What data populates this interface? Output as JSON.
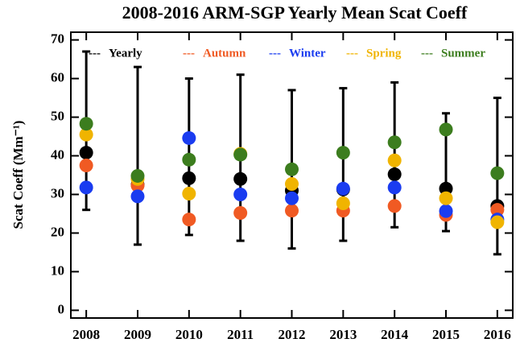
{
  "chart_data": {
    "type": "line",
    "title": "2008-2016 ARM-SGP Yearly Mean Scat Coeff",
    "y_label": "Scat Coeff (Mm⁻¹)",
    "x": [
      2008,
      2009,
      2010,
      2011,
      2012,
      2013,
      2014,
      2015,
      2016
    ],
    "xlim": [
      2007.7,
      2016.3
    ],
    "xticks": [
      2008,
      2009,
      2010,
      2011,
      2012,
      2013,
      2014,
      2015,
      2016
    ],
    "ylim": [
      -2,
      72
    ],
    "yticks": [
      0,
      10,
      20,
      30,
      40,
      50,
      60,
      70
    ],
    "legend_marker": "---",
    "series": [
      {
        "name": "Yearly",
        "color": "#000000",
        "values": [
          40.8,
          32.5,
          34.2,
          34,
          31,
          31.3,
          35.2,
          31.5,
          27
        ],
        "lower": [
          26,
          17,
          19.5,
          18,
          16,
          18,
          21.5,
          20.5,
          14.5
        ],
        "upper": [
          67,
          63,
          60,
          61,
          57,
          57.5,
          59,
          51,
          55
        ]
      },
      {
        "name": "Autumn",
        "color": "#f05a23",
        "values": [
          37.5,
          32.3,
          23.5,
          25.2,
          25.8,
          25.8,
          27,
          24.7,
          26
        ]
      },
      {
        "name": "Winter",
        "color": "#1a3cf0",
        "values": [
          31.8,
          29.5,
          44.6,
          30,
          29,
          31.5,
          31.8,
          25.7,
          23.5
        ]
      },
      {
        "name": "Spring",
        "color": "#f0b400",
        "values": [
          45.5,
          34,
          30.2,
          40.5,
          32.7,
          27.7,
          38.8,
          29,
          22.8
        ]
      },
      {
        "name": "Summer",
        "color": "#3c7d1e",
        "values": [
          48.3,
          34.8,
          39,
          40.3,
          36.5,
          40.8,
          43.5,
          46.8,
          35.5
        ]
      }
    ]
  }
}
